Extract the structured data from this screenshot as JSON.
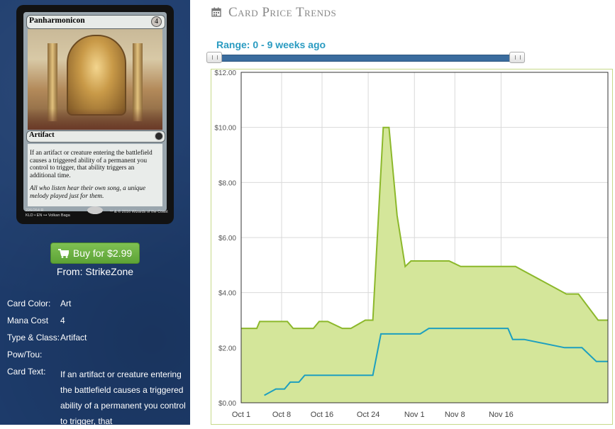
{
  "card": {
    "name": "Panharmonicon",
    "mana_cost": "4",
    "type_line": "Artifact",
    "rules_text": "If an artifact or creature entering the battlefield causes a triggered ability of a permanent you control to trigger, that ability triggers an additional time.",
    "flavor_text": "All who listen hear their own song, a unique melody played just for them.",
    "collector_line1": "226/264 R",
    "collector_line2": "KLD • EN ⊶ Volkan Baga",
    "copyright": "™ & © 2016 Wizards of the Coast"
  },
  "buy": {
    "label": "Buy for $2.99",
    "icon": "shopping-cart-icon",
    "from_label": "From:",
    "vendor": "StrikeZone"
  },
  "details": {
    "color_label": "Card Color:",
    "color_value": "Art",
    "cost_label": "Mana Cost",
    "cost_value": "4",
    "type_label": "Type & Class:",
    "type_value": "Artifact",
    "powtou_label": "Pow/Tou:",
    "text_label": "Card Text:",
    "text_value": "If an artifact or creature entering the battlefield causes a triggered ability of a permanent you control to trigger, that"
  },
  "header": {
    "title": "Card Price Trends",
    "icon": "calendar-icon"
  },
  "range": {
    "label": "Range:",
    "value": "0 - 9 weeks ago"
  },
  "colors": {
    "sidebar": "#1e3d6e",
    "buy_button": "#6db443",
    "range_text": "#2a9bc1",
    "series_green": "#8cb82b",
    "area_fill": "#d4e69a",
    "series_blue": "#1d9fbf"
  },
  "chart_data": {
    "type": "line",
    "x_ticks": [
      "Oct 1",
      "Oct 8",
      "Oct 16",
      "Oct 24",
      "Nov 1",
      "Nov 8",
      "Nov 16"
    ],
    "y_ticks": [
      "$0.00",
      "$2.00",
      "$4.00",
      "$6.00",
      "$8.00",
      "$10.00",
      "$12.00"
    ],
    "ylim": [
      0,
      12
    ],
    "x_unit": "days since Sep 26",
    "xlim": [
      0,
      63.5
    ],
    "grid": true,
    "series": [
      {
        "style": "area",
        "values": [
          [
            0,
            2.7
          ],
          [
            2.7,
            2.7
          ],
          [
            3.2,
            2.95
          ],
          [
            8,
            2.95
          ],
          [
            9,
            2.7
          ],
          [
            12.5,
            2.7
          ],
          [
            13.5,
            2.95
          ],
          [
            15,
            2.95
          ],
          [
            17.5,
            2.7
          ],
          [
            19,
            2.7
          ],
          [
            21.5,
            3.0
          ],
          [
            22.8,
            3.0
          ],
          [
            24.6,
            10.0
          ],
          [
            25.6,
            10.0
          ],
          [
            27,
            6.8
          ],
          [
            28.4,
            4.95
          ],
          [
            29.4,
            5.15
          ],
          [
            36,
            5.15
          ],
          [
            38,
            4.95
          ],
          [
            47.5,
            4.95
          ],
          [
            56.3,
            3.95
          ],
          [
            58.4,
            3.95
          ],
          [
            61.8,
            3.0
          ],
          [
            63.5,
            3.0
          ]
        ]
      },
      {
        "style": "line",
        "values": [
          [
            4,
            0.27
          ],
          [
            6,
            0.5
          ],
          [
            7.5,
            0.5
          ],
          [
            8.5,
            0.75
          ],
          [
            10,
            0.75
          ],
          [
            11,
            1.0
          ],
          [
            21.5,
            1.0
          ],
          [
            22.8,
            1.0
          ],
          [
            24.2,
            2.5
          ],
          [
            31,
            2.5
          ],
          [
            32.5,
            2.7
          ],
          [
            46.2,
            2.7
          ],
          [
            47,
            2.3
          ],
          [
            49,
            2.3
          ],
          [
            56,
            2.0
          ],
          [
            59,
            2.0
          ],
          [
            61.5,
            1.5
          ],
          [
            63.5,
            1.5
          ]
        ]
      }
    ]
  }
}
